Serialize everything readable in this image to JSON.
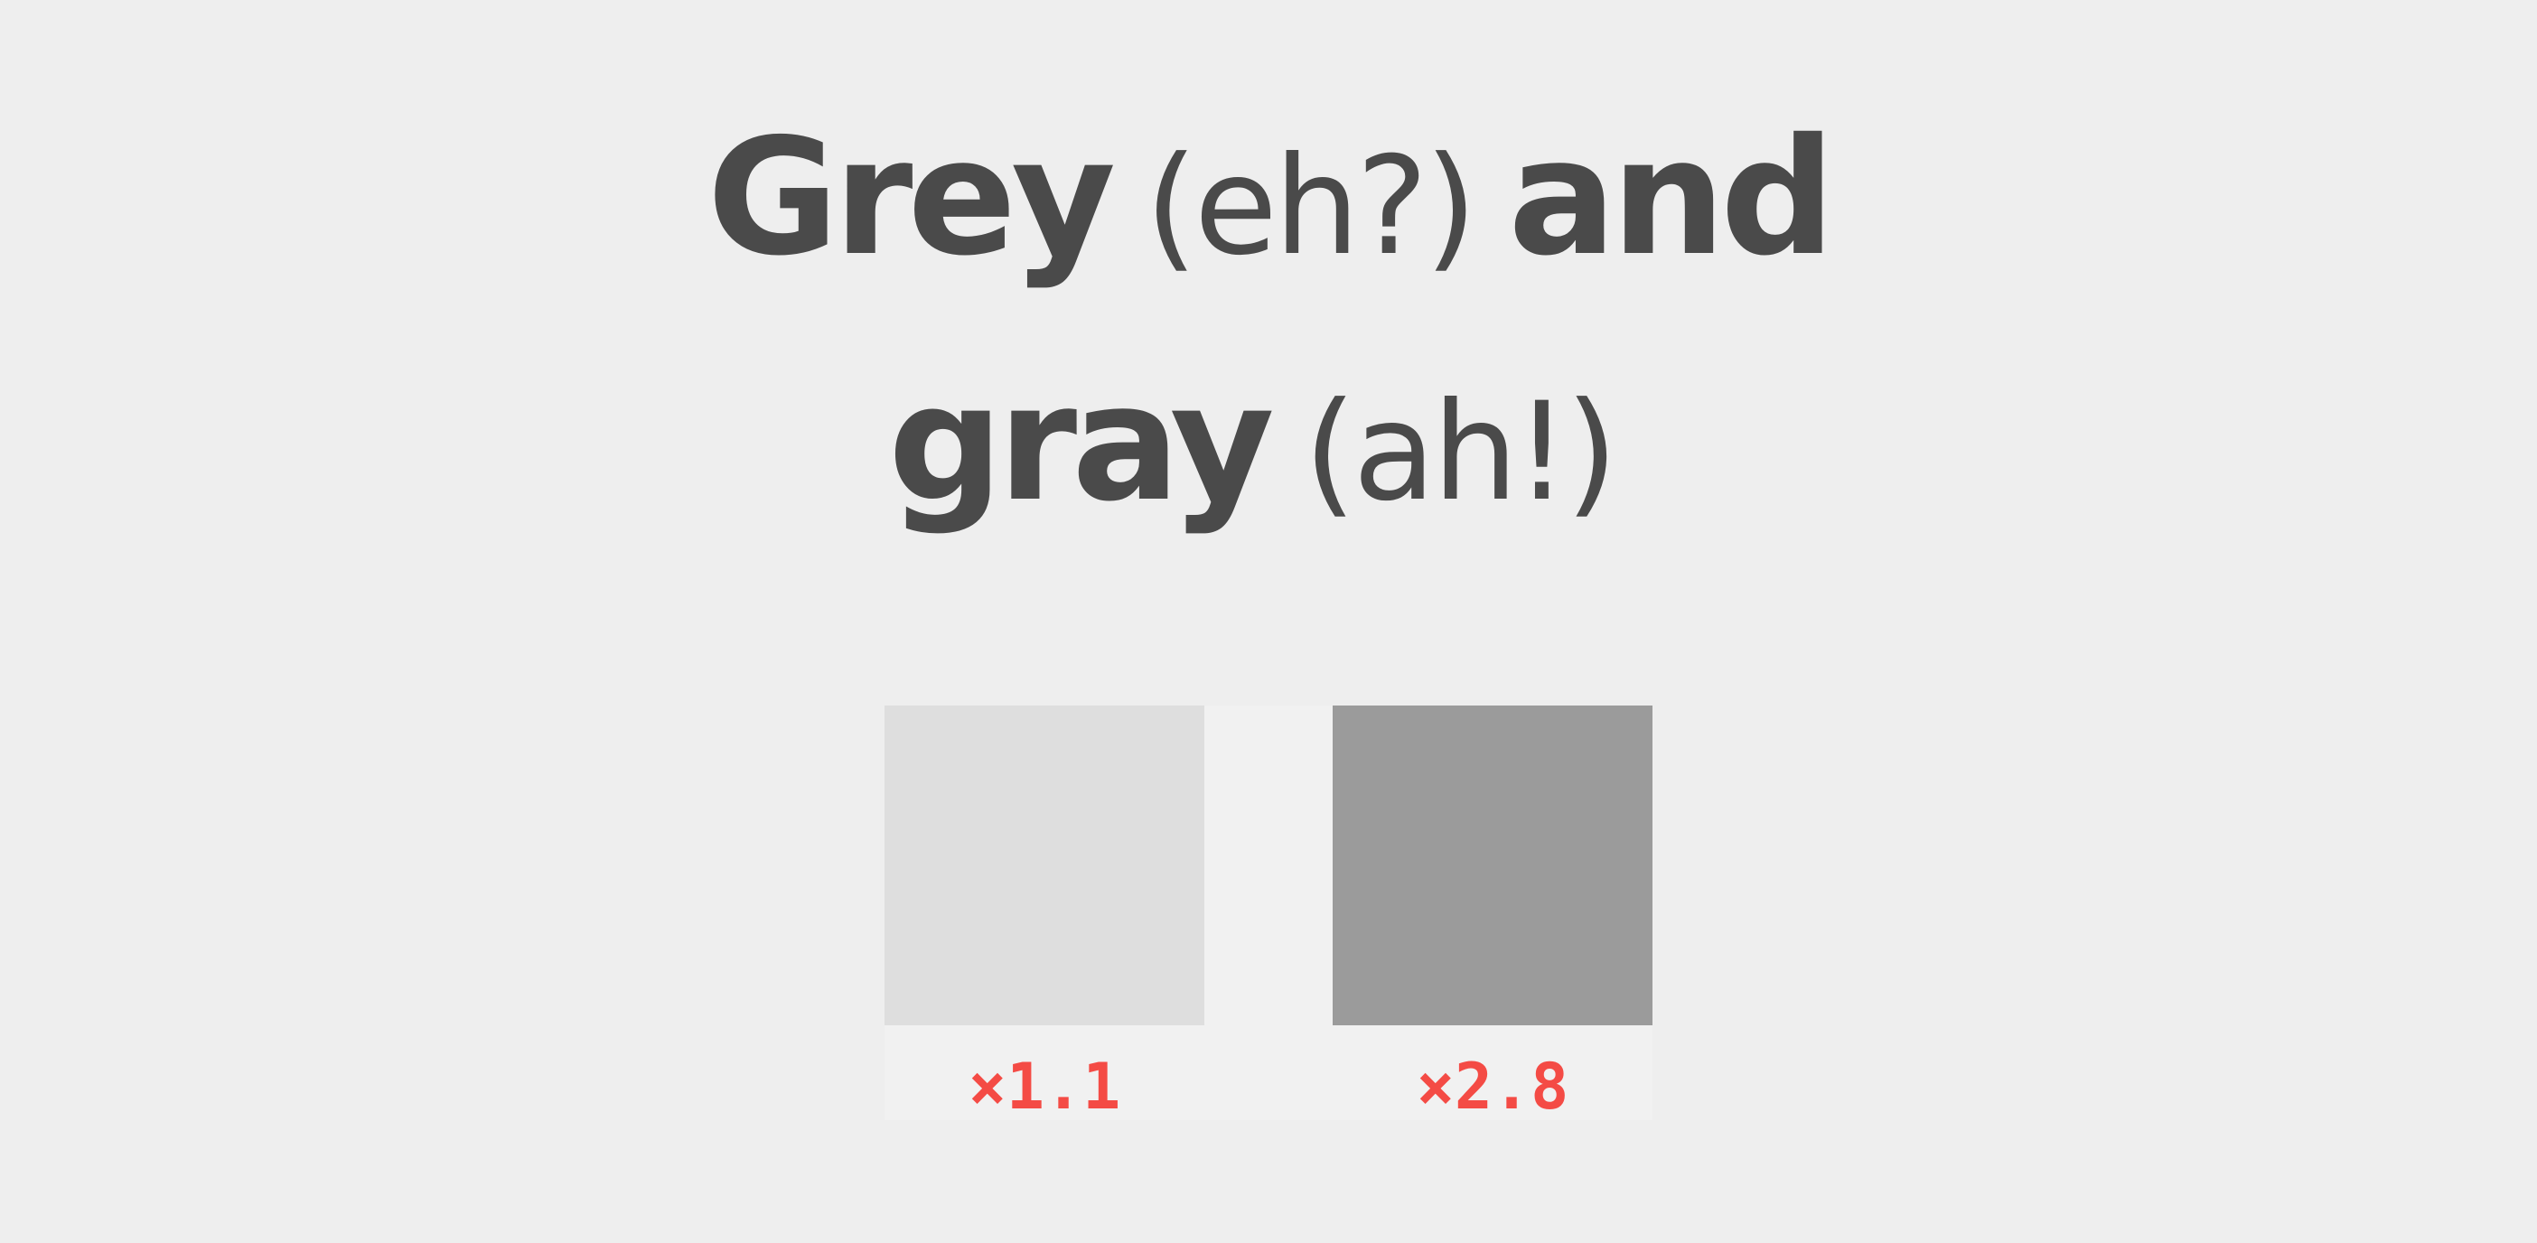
{
  "heading": {
    "line1": {
      "bold_word": "Grey",
      "aside": "(eh?)",
      "conjunction": "and"
    },
    "line2": {
      "bold_word": "gray",
      "aside": "(ah!)"
    }
  },
  "swatches": [
    {
      "color": "#dedede",
      "ratio_label": "×1.1"
    },
    {
      "color": "#9b9b9b",
      "ratio_label": "×2.8"
    }
  ],
  "colors": {
    "background": "#eeeeee",
    "text": "#4a4a4a",
    "ratio": "#f44b45",
    "swatch_panel": "#f1f1f1"
  }
}
